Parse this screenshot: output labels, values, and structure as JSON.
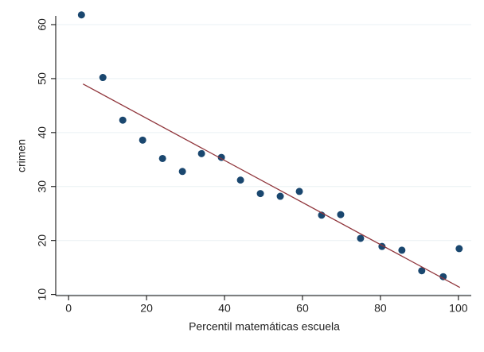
{
  "chart_data": {
    "type": "scatter",
    "xlabel": "Percentil matemáticas escuela",
    "ylabel": "crimen",
    "xlim": [
      -3.3,
      103.3
    ],
    "ylim": [
      9.8,
      62.5
    ],
    "xticks": [
      0,
      20,
      40,
      60,
      80,
      100
    ],
    "yticks": [
      10,
      20,
      30,
      40,
      50,
      60
    ],
    "grid": true,
    "series": [
      {
        "type": "scatter",
        "color": "#1a476f",
        "x": [
          3.3,
          8.8,
          13.9,
          19.0,
          24.1,
          29.2,
          34.1,
          39.2,
          44.1,
          49.2,
          54.3,
          59.2,
          64.9,
          69.8,
          74.9,
          80.4,
          85.5,
          90.6,
          96.1,
          100.2
        ],
        "values": [
          61.8,
          50.2,
          42.3,
          38.6,
          35.2,
          32.8,
          36.1,
          35.4,
          31.2,
          28.7,
          28.2,
          29.1,
          24.7,
          24.8,
          20.4,
          18.9,
          18.2,
          14.4,
          13.3,
          18.5
        ]
      },
      {
        "type": "line",
        "color": "#90353b",
        "x": [
          3.7,
          100.4
        ],
        "values": [
          49.0,
          11.3
        ]
      }
    ]
  }
}
